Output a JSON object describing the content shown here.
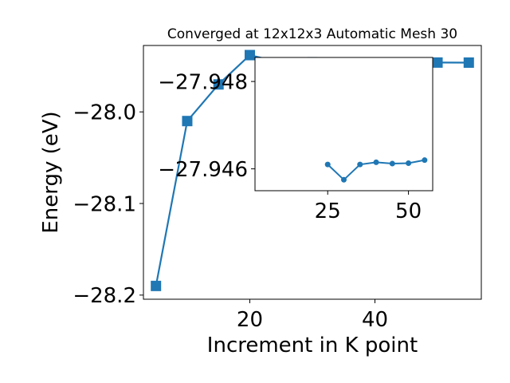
{
  "chart_data": [
    {
      "type": "line",
      "title": "Converged at 12x12x3 Automatic Mesh 30",
      "xlabel": "Increment in K point",
      "ylabel": "Energy (eV)",
      "xlim": [
        3,
        57
      ],
      "ylim": [
        -28.2045,
        -27.9275
      ],
      "xticks": [
        20,
        40
      ],
      "yticks": [
        -28.0,
        -28.1,
        -28.2
      ],
      "ytick_labels": [
        "−28.0",
        "−28.1",
        "−28.2"
      ],
      "series": [
        {
          "color": "#1f77b4",
          "marker": "square",
          "x": [
            5,
            10,
            15,
            20,
            25,
            30,
            35,
            40,
            45,
            50,
            55
          ],
          "y": [
            -28.19,
            -28.01,
            -27.97,
            -27.938,
            -27.9461,
            -27.94575,
            -27.9461,
            -27.94615,
            -27.94612,
            -27.94613,
            -27.9462
          ]
        }
      ]
    },
    {
      "type": "line",
      "inset": true,
      "xlim": [
        2.5,
        57.5
      ],
      "ylim": [
        -27.9455,
        -27.94855
      ],
      "xticks": [
        25,
        50
      ],
      "yticks": [
        -27.948,
        -27.946
      ],
      "ytick_labels": [
        "−27.948",
        "−27.946"
      ],
      "series": [
        {
          "color": "#1f77b4",
          "marker": "circle",
          "x": [
            25,
            30,
            35,
            40,
            45,
            50,
            55
          ],
          "y": [
            -27.9461,
            -27.94575,
            -27.9461,
            -27.94615,
            -27.94612,
            -27.94613,
            -27.9462
          ]
        }
      ]
    }
  ]
}
